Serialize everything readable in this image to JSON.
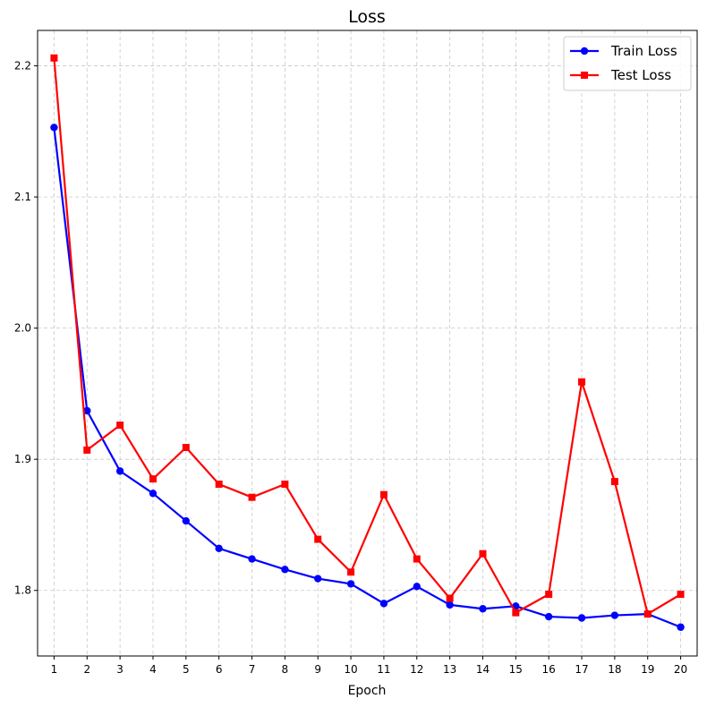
{
  "chart_data": {
    "type": "line",
    "title": "Loss",
    "xlabel": "Epoch",
    "ylabel": "",
    "x": [
      1,
      2,
      3,
      4,
      5,
      6,
      7,
      8,
      9,
      10,
      11,
      12,
      13,
      14,
      15,
      16,
      17,
      18,
      19,
      20
    ],
    "x_ticks": [
      "1",
      "2",
      "3",
      "4",
      "5",
      "6",
      "7",
      "8",
      "9",
      "10",
      "11",
      "12",
      "13",
      "14",
      "15",
      "16",
      "17",
      "18",
      "19",
      "20"
    ],
    "y_ticks": [
      "1.8",
      "1.9",
      "2.0",
      "2.1",
      "2.2"
    ],
    "xlim": [
      0.5,
      20.5
    ],
    "ylim": [
      1.75,
      2.227
    ],
    "grid": true,
    "legend_position": "top-right",
    "series": [
      {
        "name": "Train Loss",
        "color": "#0000ff",
        "marker": "circle",
        "values": [
          2.153,
          1.937,
          1.891,
          1.874,
          1.853,
          1.832,
          1.824,
          1.816,
          1.809,
          1.805,
          1.79,
          1.803,
          1.789,
          1.786,
          1.788,
          1.78,
          1.779,
          1.781,
          1.782,
          1.772
        ]
      },
      {
        "name": "Test Loss",
        "color": "#ff0000",
        "marker": "square",
        "values": [
          2.206,
          1.907,
          1.926,
          1.885,
          1.909,
          1.881,
          1.871,
          1.881,
          1.839,
          1.814,
          1.873,
          1.824,
          1.794,
          1.828,
          1.783,
          1.797,
          1.959,
          1.883,
          1.782,
          1.797
        ]
      }
    ]
  }
}
